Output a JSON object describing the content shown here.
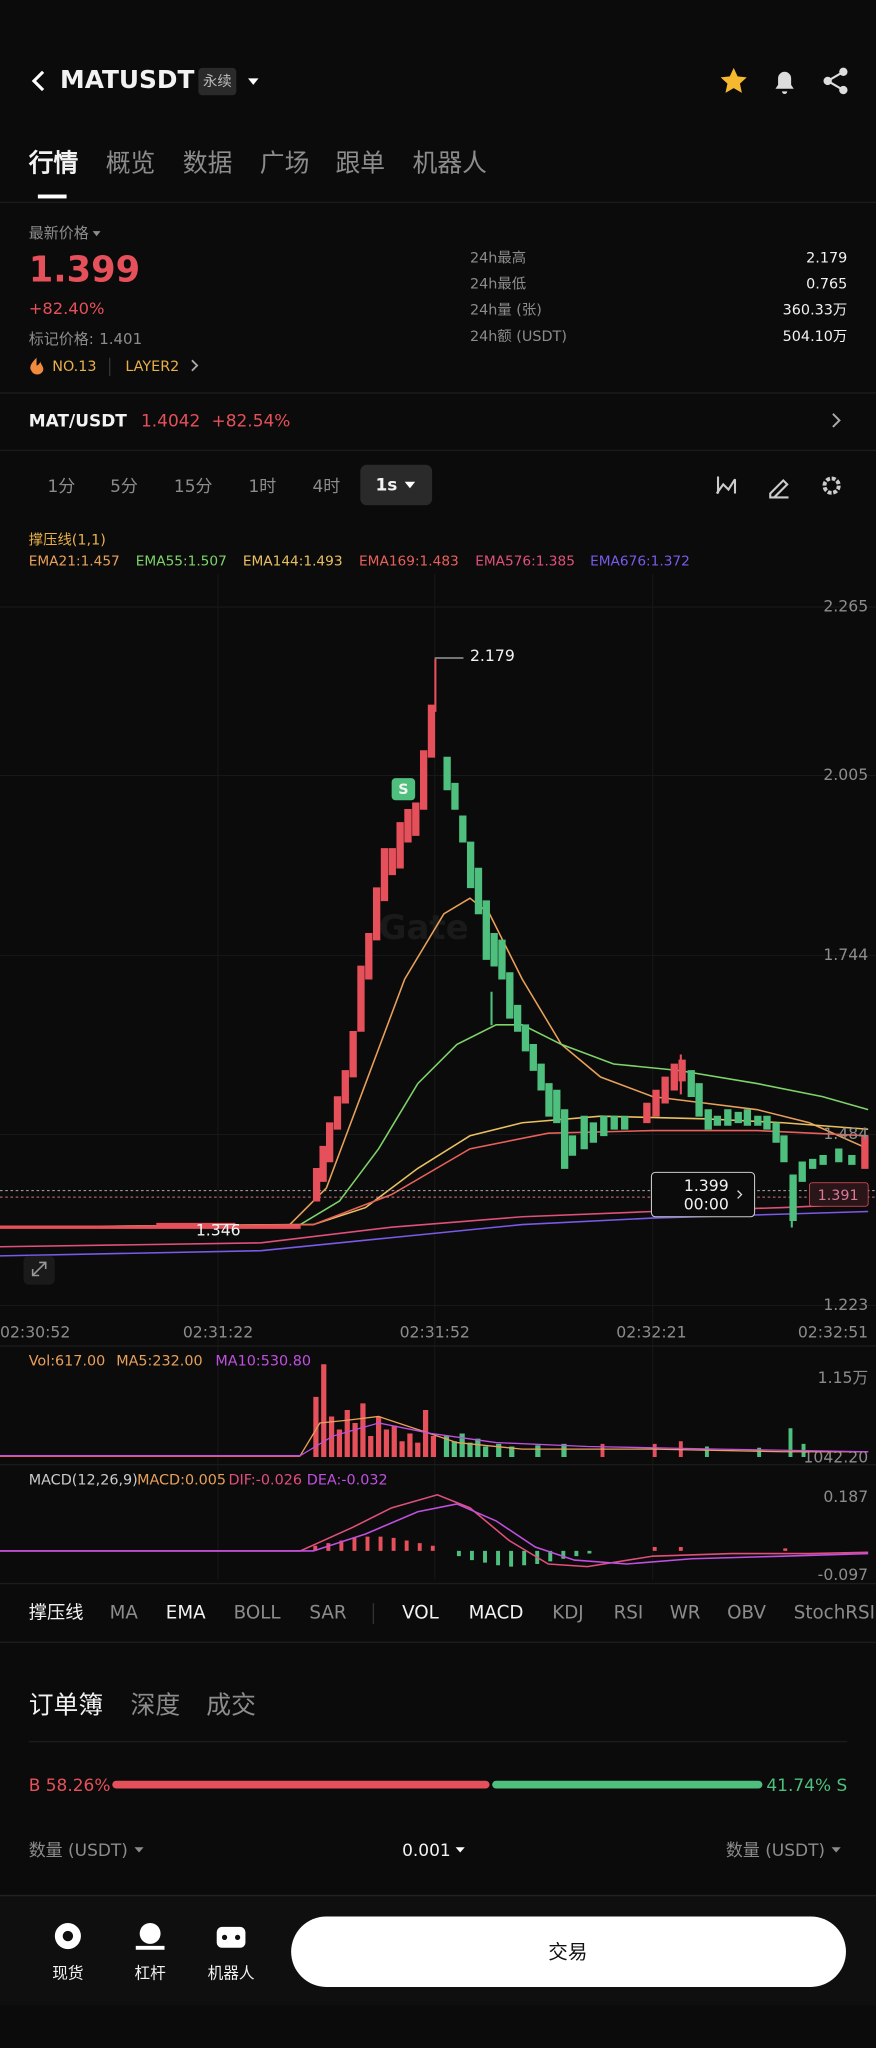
{
  "header": {
    "symbol": "MATUSDT",
    "tag": "永续"
  },
  "tabs": [
    "行情",
    "概览",
    "数据",
    "广场",
    "跟单",
    "机器人"
  ],
  "ticker": {
    "price_label": "最新价格",
    "price": "1.399",
    "change": "+82.40%",
    "mark_label": "标记价格:",
    "mark": "1.401",
    "rank": "NO.13",
    "sector": "LAYER2",
    "stats": [
      {
        "label": "24h最高",
        "value": "2.179"
      },
      {
        "label": "24h最低",
        "value": "0.765"
      },
      {
        "label": "24h量 (张)",
        "value": "360.33万"
      },
      {
        "label": "24h额 (USDT)",
        "value": "504.10万"
      }
    ]
  },
  "spot": {
    "pair": "MAT/USDT",
    "price": "1.4042",
    "change": "+82.54%"
  },
  "intervals": [
    "1分",
    "5分",
    "15分",
    "1时",
    "4时",
    "1s"
  ],
  "indicator": {
    "name": "撑压线(1,1)",
    "emas": [
      "EMA21:1.457",
      "EMA55:1.507",
      "EMA144:1.493",
      "EMA169:1.483",
      "EMA576:1.385",
      "EMA676:1.372"
    ]
  },
  "chart": {
    "price_ticks": [
      "2.265",
      "2.005",
      "1.744",
      "1.484",
      "1.223"
    ],
    "times": [
      "02:30:52",
      "02:31:22",
      "02:31:52",
      "02:32:21",
      "02:32:51"
    ],
    "high": "2.179",
    "low": "1.346",
    "current_price": "1.399",
    "countdown": "00:00",
    "right_label": "1.391",
    "signal": "S"
  },
  "volume": {
    "labels": [
      "Vol:617.00",
      "MA5:232.00",
      "MA10:530.80"
    ],
    "ticks": [
      "1.15万",
      "1042.20"
    ]
  },
  "macd": {
    "labels": [
      "MACD(12,26,9)",
      "MACD:0.005",
      "DIF:-0.026",
      "DEA:-0.032"
    ],
    "ticks": [
      "0.187",
      "-0.097"
    ]
  },
  "indicator_tabs": [
    "撑压线",
    "MA",
    "EMA",
    "BOLL",
    "SAR",
    "VOL",
    "MACD",
    "KDJ",
    "RSI",
    "WR",
    "OBV",
    "StochRSI"
  ],
  "orderbook": {
    "tabs": [
      "订单簿",
      "深度",
      "成交"
    ],
    "buy": "B 58.26%",
    "sell": "41.74% S",
    "columns": [
      "数量 (USDT)",
      "0.001",
      "数量 (USDT)"
    ]
  },
  "nav": [
    "现货",
    "杠杆",
    "机器人"
  ],
  "trade": "交易"
}
